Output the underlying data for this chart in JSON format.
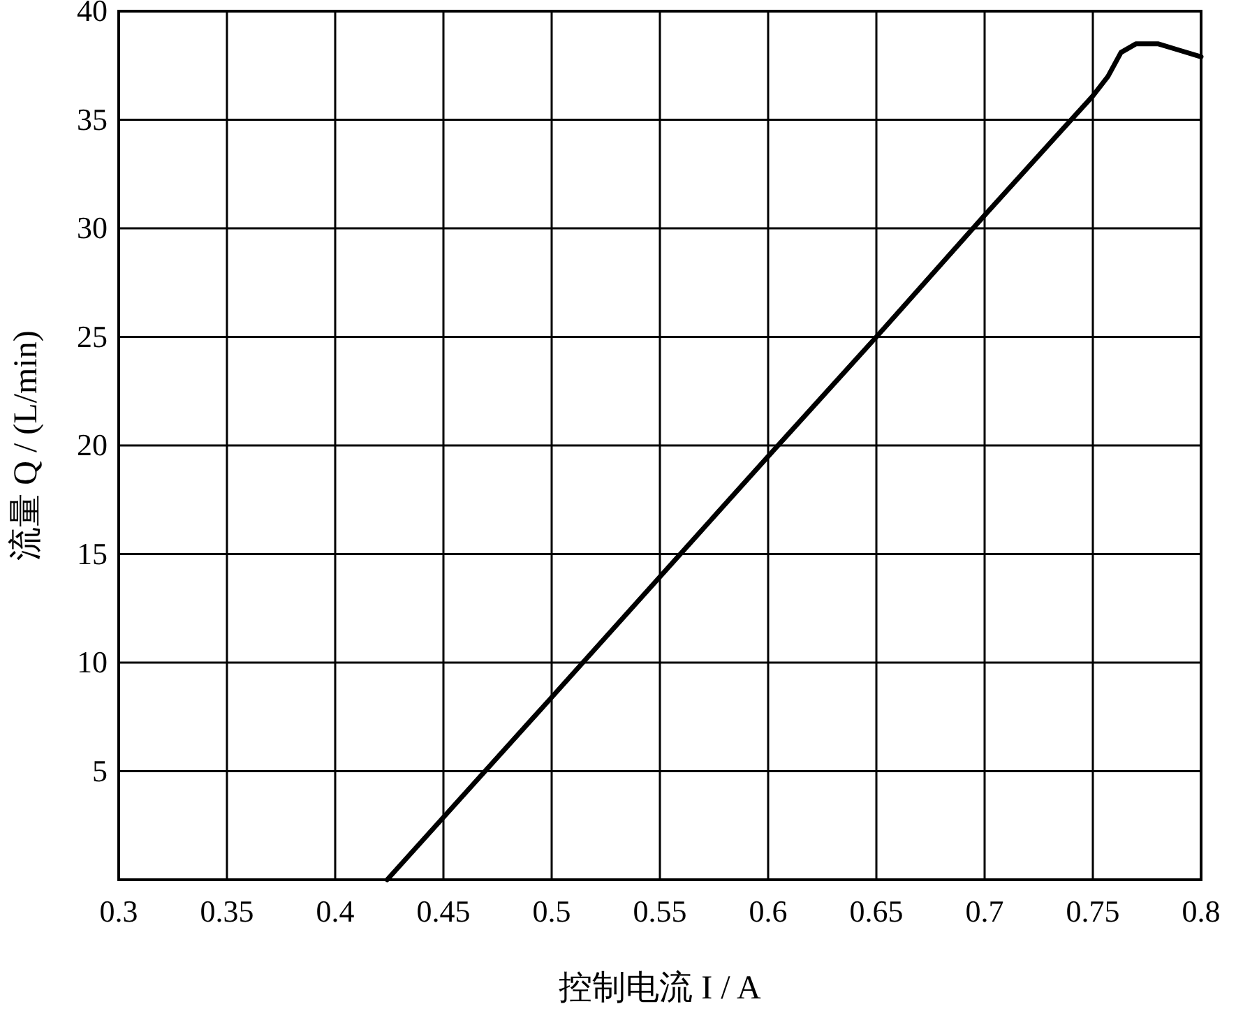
{
  "chart_data": {
    "type": "line",
    "xlabel": "控制电流 I / A",
    "ylabel": "流量 Q / (L/min)",
    "x": [
      0.424,
      0.5,
      0.6,
      0.65,
      0.7,
      0.75,
      0.757,
      0.763,
      0.77,
      0.78,
      0.79,
      0.8
    ],
    "series": [
      {
        "color": "#000000",
        "values": [
          0,
          8.4,
          19.5,
          25,
          30.6,
          36.1,
          37,
          38.1,
          38.5,
          38.5,
          38.2,
          37.9
        ]
      }
    ],
    "xlim": [
      0.3,
      0.8
    ],
    "xticks": [
      0.3,
      0.35,
      0.4,
      0.45,
      0.5,
      0.55,
      0.6,
      0.65,
      0.7,
      0.75,
      0.8
    ],
    "ylim": [
      0,
      40
    ],
    "yticks": [
      {
        "value": 0,
        "label": null
      },
      5,
      10,
      15,
      20,
      25,
      30,
      35,
      40
    ],
    "grid": true,
    "marker": "none",
    "line_style": "solid"
  }
}
